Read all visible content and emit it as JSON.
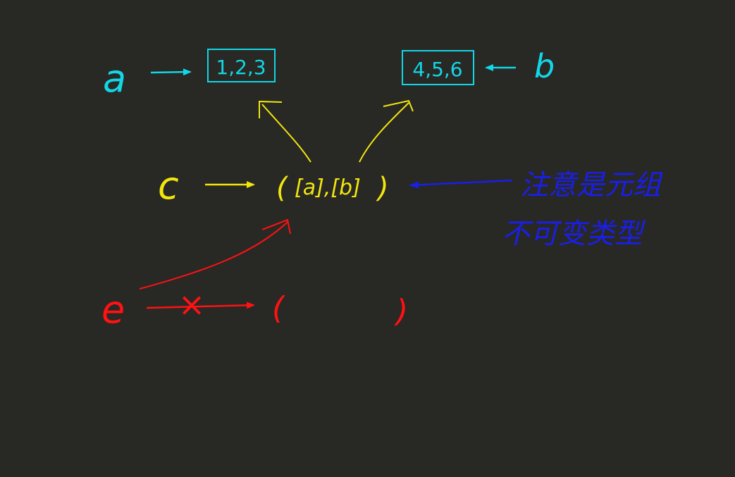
{
  "colors": {
    "background": "#282825",
    "cyan": "#12d7e6",
    "yellow": "#f2e60d",
    "red": "#ff1212",
    "blue": "#1a1fe6"
  },
  "vars": {
    "a": "a",
    "b": "b",
    "c": "c",
    "e": "e"
  },
  "list_a": "1,2,3",
  "list_b": "4,5,6",
  "tuple_c": {
    "open": "(",
    "body": "[a],[b]",
    "close": ")"
  },
  "tuple_e": {
    "open": "(",
    "close": ")"
  },
  "cross_mark": "×",
  "note": {
    "line1": "注意是元组",
    "line2": "不可变类型"
  }
}
